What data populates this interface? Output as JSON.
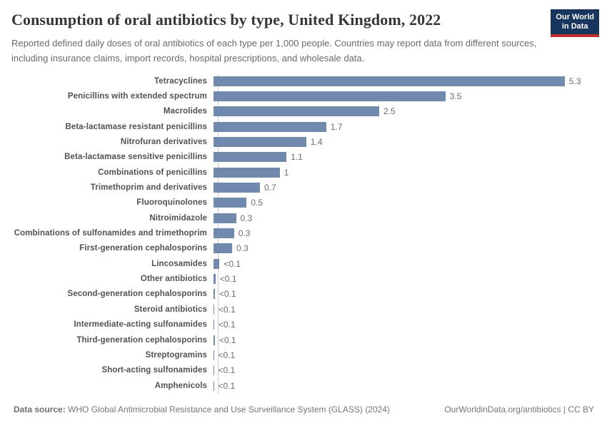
{
  "header": {
    "title": "Consumption of oral antibiotics by type, United Kingdom, 2022",
    "subtitle": "Reported defined daily doses of oral antibiotics of each type per 1,000 people. Countries may report data from different sources, including insurance claims, import records, hospital prescriptions, and wholesale data.",
    "logo": {
      "line1": "Our World",
      "line2": "in Data"
    }
  },
  "chart_data": {
    "type": "bar",
    "orientation": "horizontal",
    "title": "Consumption of oral antibiotics by type, United Kingdom, 2022",
    "xlabel": "",
    "ylabel": "",
    "unit": "defined daily doses per 1,000 people",
    "xlim": [
      0,
      5.5
    ],
    "grid": false,
    "legend": "none",
    "bar_color": "#7289ae",
    "categories": [
      "Tetracyclines",
      "Penicillins with extended spectrum",
      "Macrolides",
      "Beta-lactamase resistant penicillins",
      "Nitrofuran derivatives",
      "Beta-lactamase sensitive penicillins",
      "Combinations of penicillins",
      "Trimethoprim and derivatives",
      "Fluoroquinolones",
      "Nitroimidazole",
      "Combinations of sulfonamides and trimethoprim",
      "First-generation cephalosporins",
      "Lincosamides",
      "Other antibiotics",
      "Second-generation cephalosporins",
      "Steroid antibiotics",
      "Intermediate-acting sulfonamides",
      "Third-generation cephalosporins",
      "Streptogramins",
      "Short-acting sulfonamides",
      "Amphenicols"
    ],
    "values": [
      5.3,
      3.5,
      2.5,
      1.7,
      1.4,
      1.1,
      1,
      0.7,
      0.5,
      0.34,
      0.31,
      0.28,
      0.09,
      0.03,
      0.02,
      0.01,
      0.01,
      0.02,
      0.005,
      0.005,
      0.005
    ],
    "value_labels": [
      "5.3",
      "3.5",
      "2.5",
      "1.7",
      "1.4",
      "1.1",
      "1",
      "0.7",
      "0.5",
      "0.3",
      "0.3",
      "0.3",
      "<0.1",
      "<0.1",
      "<0.1",
      "<0.1",
      "<0.1",
      "<0.1",
      "<0.1",
      "<0.1",
      "<0.1"
    ]
  },
  "footer": {
    "source_label": "Data source:",
    "source_text": " WHO Global Antimicrobial Resistance and Use Surveillance System (GLASS) (2024)",
    "link_text": "OurWorldinData.org/antibiotics | CC BY"
  },
  "colors": {
    "bar": "#7289ae",
    "logo_bg": "#18365d",
    "logo_accent": "#c0302e",
    "title_text": "#363636",
    "subtitle_text": "#6a6a6a",
    "category_text": "#4f5255",
    "value_text": "#6c6c6c",
    "axis_line": "#cccccc"
  }
}
